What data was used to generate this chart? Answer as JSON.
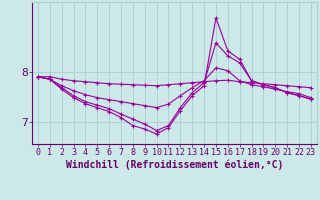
{
  "xlabel": "Windchill (Refroidissement éolien,°C)",
  "background_color": "#cce8e8",
  "line_color": "#990099",
  "x_hours": [
    0,
    1,
    2,
    3,
    4,
    5,
    6,
    7,
    8,
    9,
    10,
    11,
    12,
    13,
    14,
    15,
    16,
    17,
    18,
    19,
    20,
    21,
    22,
    23
  ],
  "series": [
    [
      7.9,
      7.9,
      7.85,
      7.82,
      7.8,
      7.78,
      7.76,
      7.75,
      7.74,
      7.73,
      7.72,
      7.74,
      7.76,
      7.78,
      7.8,
      7.82,
      7.83,
      7.8,
      7.78,
      7.76,
      7.74,
      7.72,
      7.7,
      7.68
    ],
    [
      7.9,
      7.85,
      7.72,
      7.62,
      7.54,
      7.48,
      7.44,
      7.4,
      7.36,
      7.32,
      7.28,
      7.35,
      7.52,
      7.68,
      7.82,
      8.08,
      8.02,
      7.82,
      7.74,
      7.7,
      7.65,
      7.6,
      7.56,
      7.48
    ],
    [
      7.9,
      7.85,
      7.68,
      7.52,
      7.4,
      7.33,
      7.26,
      7.15,
      7.05,
      6.95,
      6.82,
      6.92,
      7.28,
      7.58,
      7.78,
      8.58,
      8.32,
      8.18,
      7.82,
      7.74,
      7.68,
      7.58,
      7.52,
      7.45
    ],
    [
      7.9,
      7.85,
      7.65,
      7.48,
      7.36,
      7.28,
      7.2,
      7.08,
      6.92,
      6.85,
      6.75,
      6.88,
      7.22,
      7.52,
      7.72,
      9.08,
      8.42,
      8.25,
      7.82,
      7.74,
      7.68,
      7.58,
      7.52,
      7.45
    ]
  ],
  "ylim": [
    6.55,
    9.4
  ],
  "yticks": [
    7,
    8
  ],
  "xlim": [
    -0.5,
    23.5
  ],
  "grid_color": "#aad0d0",
  "axis_color": "#660066",
  "font_color": "#660066",
  "tick_fontsize": 6,
  "label_fontsize": 7
}
